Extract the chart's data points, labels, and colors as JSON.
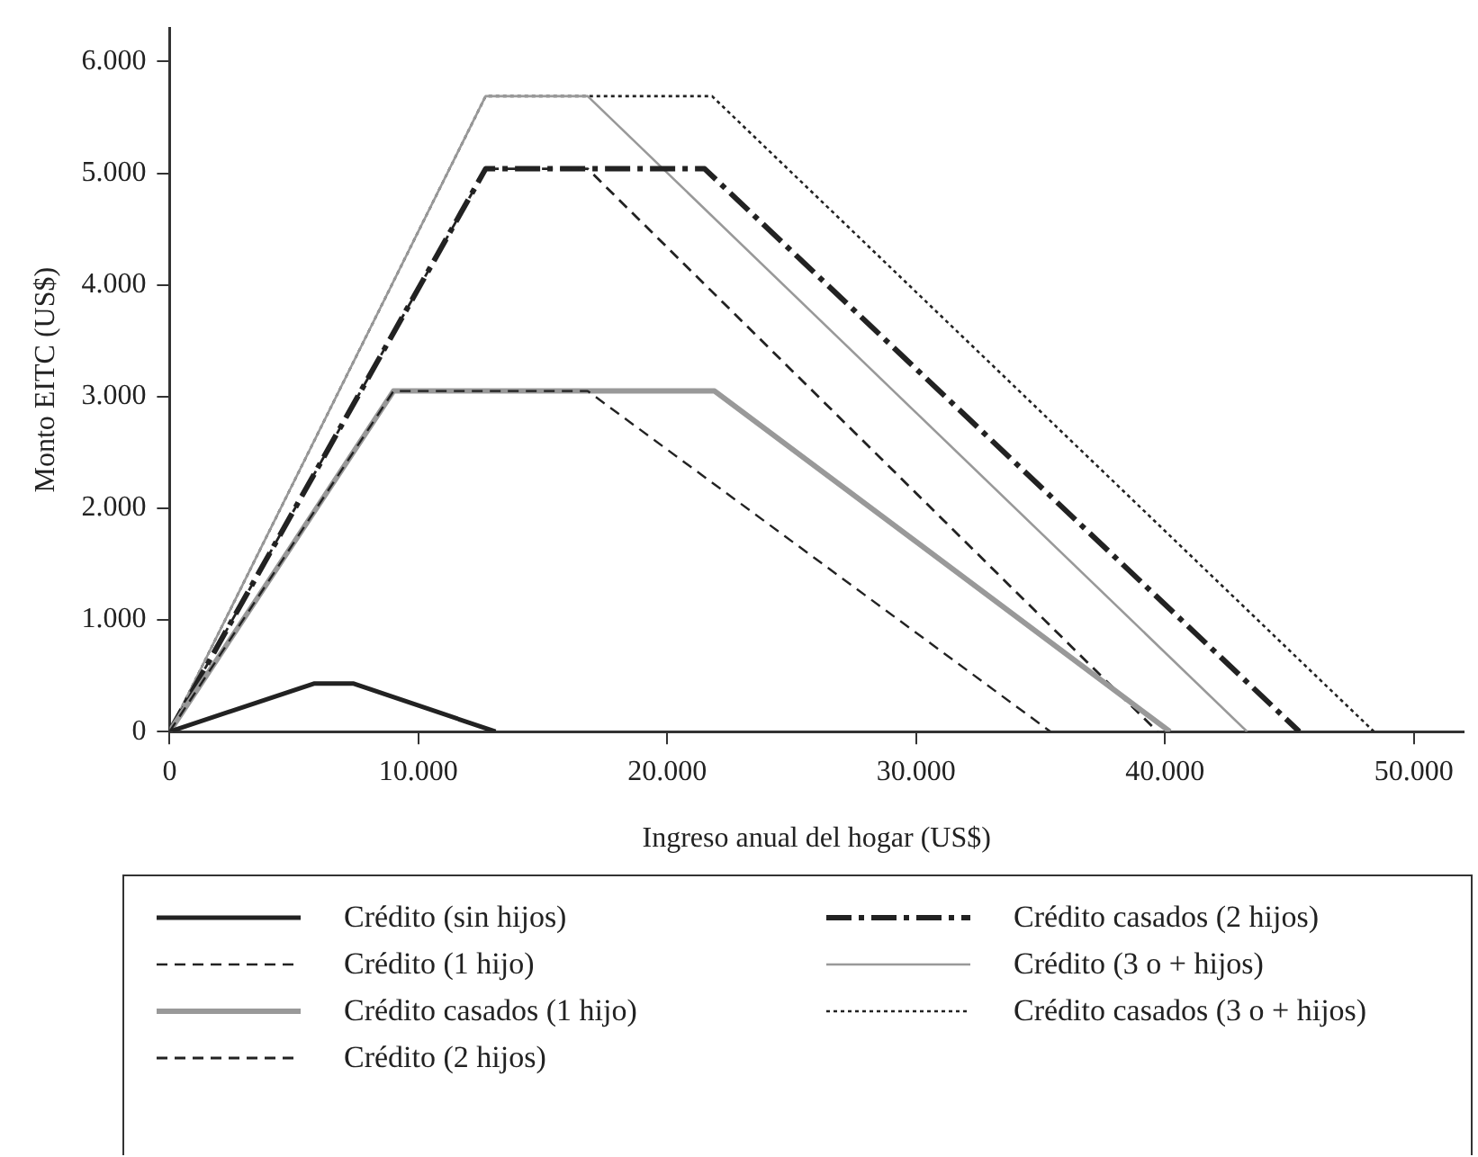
{
  "chart_data": {
    "type": "line",
    "xlabel": "Ingreso anual del hogar (US$)",
    "ylabel": "Monto EITC (US$)",
    "xlim": [
      0,
      52000
    ],
    "ylim": [
      0,
      6300
    ],
    "xticks": [
      0,
      {
        "value": 10000,
        "label": "10.000"
      },
      {
        "value": 20000,
        "label": "20.000"
      },
      {
        "value": 30000,
        "label": "30.000"
      },
      {
        "value": 40000,
        "label": "40.000"
      },
      {
        "value": 50000,
        "label": "50.000"
      }
    ],
    "yticks": [
      0,
      {
        "value": 1000,
        "label": "1.000"
      },
      {
        "value": 2000,
        "label": "2.000"
      },
      {
        "value": 3000,
        "label": "3.000"
      },
      {
        "value": 4000,
        "label": "4.000"
      },
      {
        "value": 5000,
        "label": "5.000"
      },
      {
        "value": 6000,
        "label": "6.000"
      }
    ],
    "grid": false,
    "legend": "bottom",
    "marker": "none",
    "series": [
      {
        "name": "Crédito (sin hijos)",
        "color": "#222222",
        "line_style": "solid",
        "x": [
          0,
          5800,
          7400,
          13100
        ],
        "values": [
          0,
          430,
          430,
          0
        ]
      },
      {
        "name": "Crédito (1 hijo)",
        "color": "#222222",
        "line_style": "dashed",
        "x": [
          0,
          9000,
          16800,
          35400
        ],
        "values": [
          0,
          3050,
          3050,
          0
        ]
      },
      {
        "name": "Crédito casados (1 hijo)",
        "color": "#999999",
        "line_style": "solid",
        "x": [
          0,
          9000,
          21900,
          40200
        ],
        "values": [
          0,
          3050,
          3050,
          0
        ]
      },
      {
        "name": "Crédito (2 hijos)",
        "color": "#222222",
        "line_style": "dashed",
        "x": [
          0,
          12700,
          16800,
          39700
        ],
        "values": [
          0,
          5040,
          5040,
          0
        ]
      },
      {
        "name": "Crédito casados (2 hijos)",
        "color": "#222222",
        "line_style": "dashdot",
        "x": [
          0,
          12700,
          21500,
          45400
        ],
        "values": [
          0,
          5040,
          5040,
          0
        ]
      },
      {
        "name": "Crédito (3 o + hijos)",
        "color": "#999999",
        "line_style": "solid",
        "x": [
          0,
          12700,
          16800,
          43300
        ],
        "values": [
          0,
          5690,
          5690,
          0
        ]
      },
      {
        "name": "Crédito casados (3 o + hijos)",
        "color": "#222222",
        "line_style": "dotted",
        "x": [
          0,
          12700,
          21800,
          48400
        ],
        "values": [
          0,
          5690,
          5690,
          0
        ]
      }
    ]
  }
}
